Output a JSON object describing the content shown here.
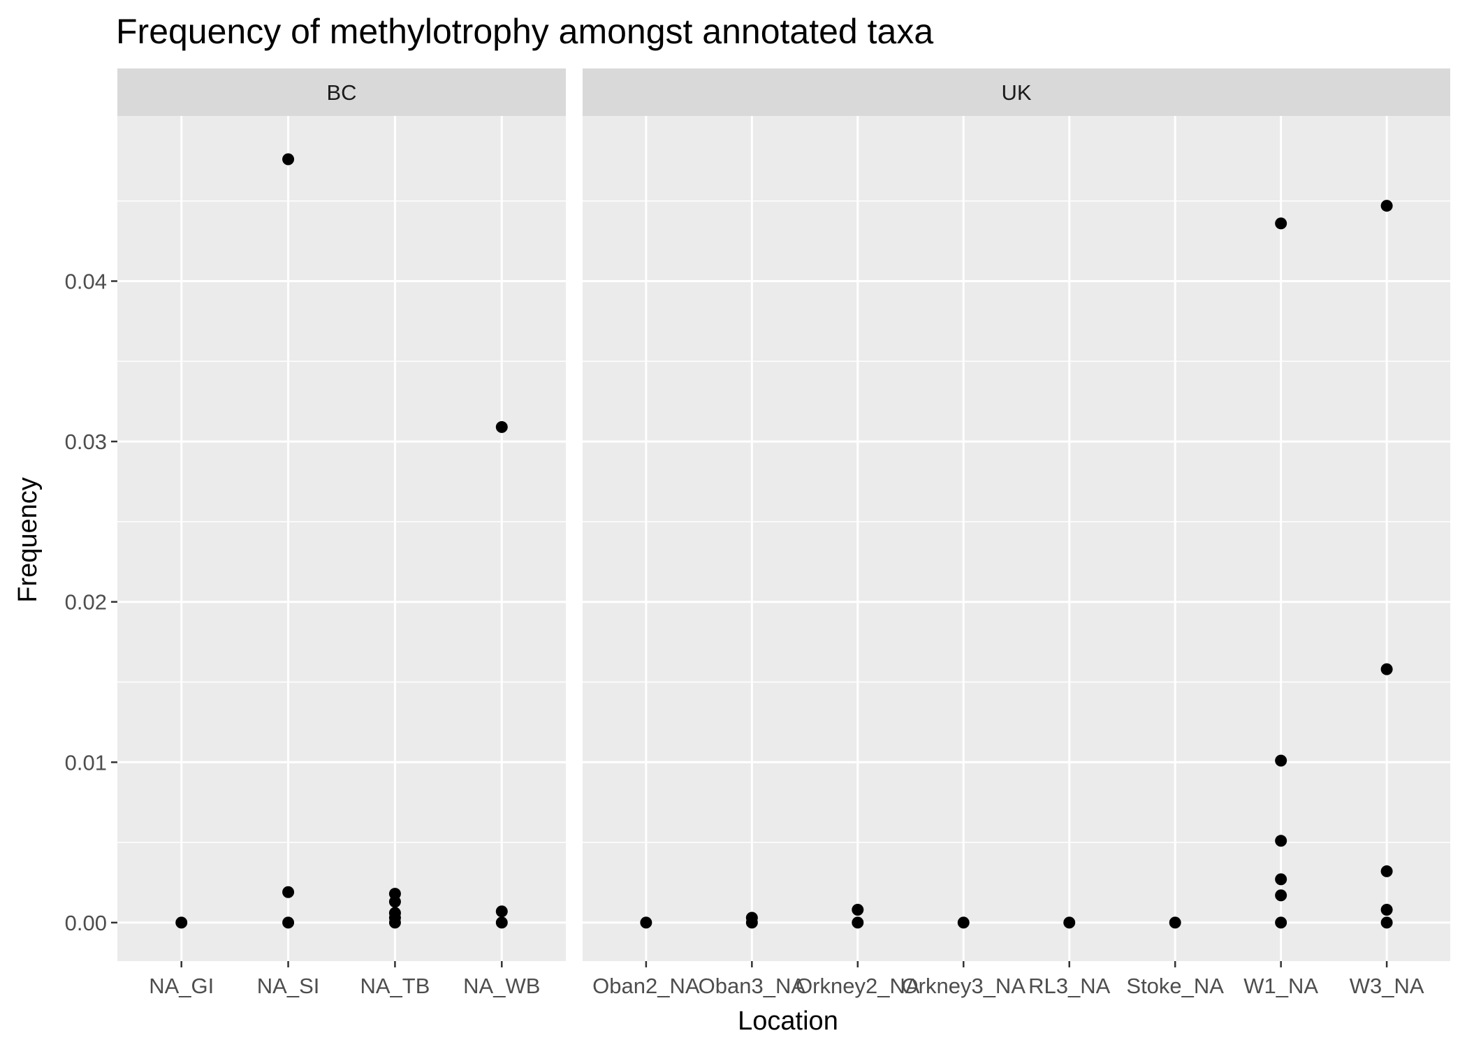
{
  "chart_data": {
    "type": "scatter",
    "title": "Frequency of methylotrophy amongst annotated taxa",
    "xlabel": "Location",
    "ylabel": "Frequency",
    "ylim": [
      -0.0024,
      0.0503
    ],
    "yticks": [
      0.0,
      0.01,
      0.02,
      0.03,
      0.04
    ],
    "ytick_labels": [
      "0.00",
      "0.01",
      "0.02",
      "0.03",
      "0.04"
    ],
    "grid": true,
    "point_color": "#000000",
    "panel_background": "#ebebeb",
    "strip_background": "#d9d9d9",
    "facets": [
      {
        "name": "BC",
        "categories": [
          "NA_GI",
          "NA_SI",
          "NA_TB",
          "NA_WB"
        ],
        "points": [
          {
            "x": "NA_GI",
            "y": 0.0
          },
          {
            "x": "NA_SI",
            "y": 0.0476
          },
          {
            "x": "NA_SI",
            "y": 0.0019
          },
          {
            "x": "NA_SI",
            "y": 0.0
          },
          {
            "x": "NA_TB",
            "y": 0.0018
          },
          {
            "x": "NA_TB",
            "y": 0.0013
          },
          {
            "x": "NA_TB",
            "y": 0.0006
          },
          {
            "x": "NA_TB",
            "y": 0.0003
          },
          {
            "x": "NA_TB",
            "y": 0.0
          },
          {
            "x": "NA_WB",
            "y": 0.0309
          },
          {
            "x": "NA_WB",
            "y": 0.0007
          },
          {
            "x": "NA_WB",
            "y": 0.0
          }
        ]
      },
      {
        "name": "UK",
        "categories": [
          "Oban2_NA",
          "Oban3_NA",
          "Orkney2_NA",
          "Orkney3_NA",
          "RL3_NA",
          "Stoke_NA",
          "W1_NA",
          "W3_NA"
        ],
        "points": [
          {
            "x": "Oban2_NA",
            "y": 0.0
          },
          {
            "x": "Oban3_NA",
            "y": 0.0003
          },
          {
            "x": "Oban3_NA",
            "y": 0.0
          },
          {
            "x": "Orkney2_NA",
            "y": 0.0008
          },
          {
            "x": "Orkney2_NA",
            "y": 0.0
          },
          {
            "x": "Orkney3_NA",
            "y": 0.0
          },
          {
            "x": "RL3_NA",
            "y": 0.0
          },
          {
            "x": "Stoke_NA",
            "y": 0.0
          },
          {
            "x": "W1_NA",
            "y": 0.0436
          },
          {
            "x": "W1_NA",
            "y": 0.0101
          },
          {
            "x": "W1_NA",
            "y": 0.0051
          },
          {
            "x": "W1_NA",
            "y": 0.0027
          },
          {
            "x": "W1_NA",
            "y": 0.0017
          },
          {
            "x": "W1_NA",
            "y": 0.0
          },
          {
            "x": "W3_NA",
            "y": 0.0447
          },
          {
            "x": "W3_NA",
            "y": 0.0158
          },
          {
            "x": "W3_NA",
            "y": 0.0032
          },
          {
            "x": "W3_NA",
            "y": 0.0008
          },
          {
            "x": "W3_NA",
            "y": 0.0
          }
        ]
      }
    ]
  }
}
